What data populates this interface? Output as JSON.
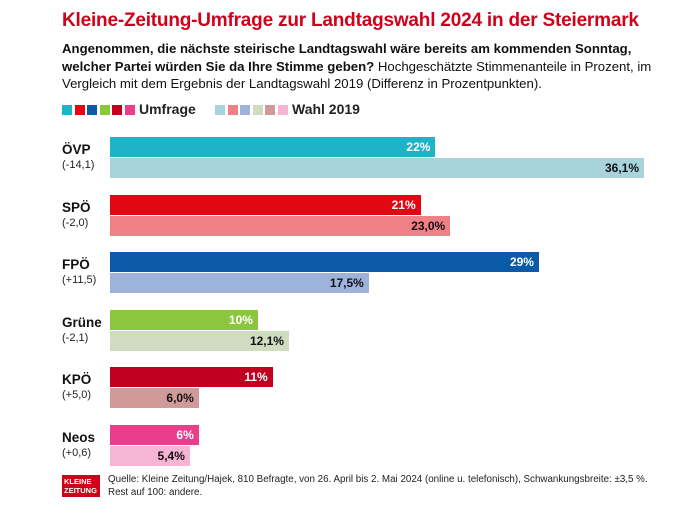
{
  "title": "Kleine-Zeitung-Umfrage zur Landtagswahl 2024 in der Steiermark",
  "subtitle_question": "Angenommen, die nächste steirische Landtagswahl wäre bereits am kommenden Sonntag, welcher Partei würden Sie da Ihre Stimme geben?",
  "subtitle_note": "Hochgeschätzte Stimmenanteile in Prozent, im Vergleich mit dem Ergebnis der Landtagswahl 2019 (Differenz in Prozentpunkten).",
  "legend": {
    "survey_label": "Umfrage",
    "election_label": "Wahl 2019",
    "survey_swatches": [
      "#1fb3c8",
      "#e30613",
      "#0a5aa8",
      "#8cc63f",
      "#c1001f",
      "#e83e8c"
    ],
    "election_swatches": [
      "#a9d3dc",
      "#ee8086",
      "#9db3dc",
      "#cfdcc0",
      "#d09a9a",
      "#f7b5d6"
    ]
  },
  "chart_data": {
    "type": "bar",
    "orientation": "horizontal",
    "title": "Kleine-Zeitung-Umfrage zur Landtagswahl 2024 in der Steiermark",
    "categories": [
      "ÖVP",
      "SPÖ",
      "FPÖ",
      "Grüne",
      "KPÖ",
      "Neos"
    ],
    "differences": [
      "(-14,1)",
      "(-2,0)",
      "(+11,5)",
      "(-2,1)",
      "(+5,0)",
      "(+0,6)"
    ],
    "series": [
      {
        "name": "Umfrage",
        "values": [
          22,
          21,
          29,
          10,
          11,
          6
        ],
        "labels": [
          "22%",
          "21%",
          "29%",
          "10%",
          "11%",
          "6%"
        ],
        "colors": [
          "#1fb3c8",
          "#e30613",
          "#0a5aa8",
          "#8cc63f",
          "#c1001f",
          "#e83e8c"
        ]
      },
      {
        "name": "Wahl 2019",
        "values": [
          36.1,
          23.0,
          17.5,
          12.1,
          6.0,
          5.4
        ],
        "labels": [
          "36,1%",
          "23,0%",
          "17,5%",
          "12,1%",
          "6,0%",
          "5,4%"
        ],
        "colors": [
          "#a9d3dc",
          "#ee8086",
          "#9db3dc",
          "#cfdcc0",
          "#d09a9a",
          "#f7b5d6"
        ]
      }
    ],
    "xlim": [
      0,
      36.1
    ]
  },
  "footer": {
    "logo_line1": "KLEINE",
    "logo_line2": "ZEITUNG",
    "source": "Quelle: Kleine Zeitung/Hajek, 810 Befragte, von 26. April bis 2. Mai 2024 (online u. telefonisch), Schwankungsbreite: ±3,5 %. Rest auf 100: andere."
  }
}
